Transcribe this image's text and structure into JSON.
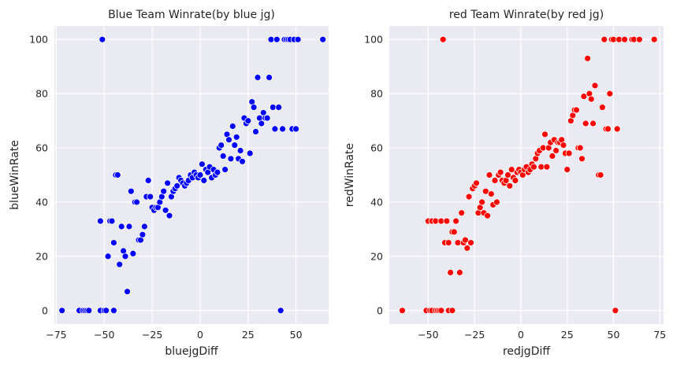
{
  "chart_data": [
    {
      "type": "scatter",
      "title": "Blue Team Winrate(by blue jg)",
      "xlabel": "bluejgDiff",
      "ylabel": "blueWinRate",
      "xticks": [
        -75,
        -50,
        -25,
        0,
        25,
        50
      ],
      "yticks": [
        0,
        20,
        40,
        60,
        80,
        100
      ],
      "xlim": [
        -76,
        67
      ],
      "ylim": [
        -5,
        105
      ],
      "grid": true,
      "point_color": "#0000ff",
      "points": [
        [
          -72,
          0
        ],
        [
          -63,
          0
        ],
        [
          -61,
          0
        ],
        [
          -60,
          0
        ],
        [
          -59,
          0
        ],
        [
          -58,
          0
        ],
        [
          -52,
          0
        ],
        [
          -50,
          0
        ],
        [
          -49,
          0
        ],
        [
          -45,
          0
        ],
        [
          -52,
          33
        ],
        [
          -51,
          100
        ],
        [
          -48,
          20
        ],
        [
          -47,
          33
        ],
        [
          -46,
          33
        ],
        [
          -45,
          25
        ],
        [
          -44,
          50
        ],
        [
          -43,
          50
        ],
        [
          -42,
          17
        ],
        [
          -41,
          31
        ],
        [
          -40,
          22
        ],
        [
          -39,
          20
        ],
        [
          -38,
          7
        ],
        [
          -37,
          31
        ],
        [
          -36,
          44
        ],
        [
          -35,
          21
        ],
        [
          -34,
          40
        ],
        [
          -33,
          40
        ],
        [
          -32,
          26
        ],
        [
          -31,
          26
        ],
        [
          -30,
          28
        ],
        [
          -29,
          31
        ],
        [
          -28,
          42
        ],
        [
          -27,
          48
        ],
        [
          -26,
          42
        ],
        [
          -25,
          38
        ],
        [
          -24,
          37
        ],
        [
          -23,
          38
        ],
        [
          -22,
          38
        ],
        [
          -21,
          40
        ],
        [
          -20,
          42
        ],
        [
          -19,
          44
        ],
        [
          -18,
          37
        ],
        [
          -17,
          47
        ],
        [
          -16,
          35
        ],
        [
          -15,
          42
        ],
        [
          -14,
          44
        ],
        [
          -13,
          45
        ],
        [
          -12,
          46
        ],
        [
          -11,
          49
        ],
        [
          -10,
          48
        ],
        [
          -9,
          47
        ],
        [
          -8,
          46
        ],
        [
          -7,
          47
        ],
        [
          -6,
          48
        ],
        [
          -5,
          50
        ],
        [
          -4,
          49
        ],
        [
          -3,
          51
        ],
        [
          -2,
          50
        ],
        [
          -1,
          49
        ],
        [
          0,
          50
        ],
        [
          1,
          54
        ],
        [
          2,
          48
        ],
        [
          3,
          52
        ],
        [
          4,
          51
        ],
        [
          5,
          53
        ],
        [
          6,
          49
        ],
        [
          7,
          52
        ],
        [
          8,
          50
        ],
        [
          9,
          51
        ],
        [
          10,
          60
        ],
        [
          11,
          61
        ],
        [
          12,
          57
        ],
        [
          13,
          52
        ],
        [
          14,
          65
        ],
        [
          15,
          63
        ],
        [
          16,
          56
        ],
        [
          17,
          68
        ],
        [
          18,
          61
        ],
        [
          19,
          64
        ],
        [
          20,
          56
        ],
        [
          21,
          59
        ],
        [
          22,
          55
        ],
        [
          23,
          71
        ],
        [
          24,
          69
        ],
        [
          25,
          70
        ],
        [
          26,
          58
        ],
        [
          27,
          77
        ],
        [
          28,
          75
        ],
        [
          29,
          66
        ],
        [
          30,
          86
        ],
        [
          31,
          71
        ],
        [
          32,
          69
        ],
        [
          33,
          73
        ],
        [
          34,
          71
        ],
        [
          35,
          71
        ],
        [
          36,
          86
        ],
        [
          37,
          100
        ],
        [
          38,
          75
        ],
        [
          39,
          67
        ],
        [
          40,
          100
        ],
        [
          41,
          75
        ],
        [
          42,
          0
        ],
        [
          43,
          67
        ],
        [
          44,
          100
        ],
        [
          45,
          100
        ],
        [
          46,
          100
        ],
        [
          47,
          100
        ],
        [
          48,
          67
        ],
        [
          49,
          100
        ],
        [
          50,
          67
        ],
        [
          51,
          100
        ],
        [
          64,
          100
        ]
      ]
    },
    {
      "type": "scatter",
      "title": "red Team Winrate(by red jg)",
      "xlabel": "redjgDiff",
      "ylabel": "redWinRate",
      "xticks": [
        -50,
        -25,
        0,
        25,
        50,
        75
      ],
      "yticks": [
        0,
        20,
        40,
        60,
        80,
        100
      ],
      "xlim": [
        -71,
        77
      ],
      "ylim": [
        -5,
        105
      ],
      "grid": true,
      "point_color": "#ff0000",
      "points": [
        [
          -64,
          0
        ],
        [
          -51,
          0
        ],
        [
          -49,
          0
        ],
        [
          -48,
          0
        ],
        [
          -46,
          0
        ],
        [
          -45,
          0
        ],
        [
          -44,
          0
        ],
        [
          -43,
          0
        ],
        [
          -39,
          0
        ],
        [
          -37,
          0
        ],
        [
          -50,
          33
        ],
        [
          -48,
          33
        ],
        [
          -46,
          33
        ],
        [
          -43,
          33
        ],
        [
          -40,
          33
        ],
        [
          -42,
          100
        ],
        [
          -41,
          25
        ],
        [
          -39,
          25
        ],
        [
          -38,
          14
        ],
        [
          -37,
          29
        ],
        [
          -36,
          29
        ],
        [
          -35,
          33
        ],
        [
          -34,
          25
        ],
        [
          -33,
          14
        ],
        [
          -32,
          36
        ],
        [
          -31,
          25
        ],
        [
          -30,
          26
        ],
        [
          -29,
          23
        ],
        [
          -28,
          42
        ],
        [
          -27,
          25
        ],
        [
          -26,
          45
        ],
        [
          -25,
          46
        ],
        [
          -24,
          47
        ],
        [
          -23,
          36
        ],
        [
          -22,
          38
        ],
        [
          -21,
          40
        ],
        [
          -20,
          36
        ],
        [
          -19,
          44
        ],
        [
          -18,
          35
        ],
        [
          -17,
          50
        ],
        [
          -16,
          43
        ],
        [
          -15,
          39
        ],
        [
          -14,
          48
        ],
        [
          -13,
          40
        ],
        [
          -12,
          50
        ],
        [
          -11,
          51
        ],
        [
          -10,
          48
        ],
        [
          -9,
          47
        ],
        [
          -8,
          48
        ],
        [
          -7,
          50
        ],
        [
          -6,
          46
        ],
        [
          -5,
          52
        ],
        [
          -4,
          49
        ],
        [
          -3,
          48
        ],
        [
          -2,
          51
        ],
        [
          -1,
          52
        ],
        [
          0,
          51
        ],
        [
          1,
          50
        ],
        [
          2,
          52
        ],
        [
          3,
          53
        ],
        [
          4,
          51
        ],
        [
          5,
          52
        ],
        [
          6,
          54
        ],
        [
          7,
          53
        ],
        [
          8,
          56
        ],
        [
          9,
          58
        ],
        [
          10,
          59
        ],
        [
          11,
          53
        ],
        [
          12,
          60
        ],
        [
          13,
          65
        ],
        [
          14,
          53
        ],
        [
          15,
          60
        ],
        [
          16,
          62
        ],
        [
          17,
          57
        ],
        [
          18,
          63
        ],
        [
          19,
          59
        ],
        [
          20,
          62
        ],
        [
          21,
          62
        ],
        [
          22,
          63
        ],
        [
          23,
          61
        ],
        [
          24,
          58
        ],
        [
          25,
          52
        ],
        [
          26,
          58
        ],
        [
          27,
          70
        ],
        [
          28,
          72
        ],
        [
          29,
          74
        ],
        [
          30,
          74
        ],
        [
          31,
          60
        ],
        [
          32,
          60
        ],
        [
          33,
          56
        ],
        [
          34,
          79
        ],
        [
          35,
          69
        ],
        [
          36,
          93
        ],
        [
          37,
          80
        ],
        [
          38,
          78
        ],
        [
          39,
          69
        ],
        [
          40,
          83
        ],
        [
          42,
          50
        ],
        [
          43,
          50
        ],
        [
          44,
          75
        ],
        [
          45,
          100
        ],
        [
          46,
          67
        ],
        [
          47,
          67
        ],
        [
          48,
          80
        ],
        [
          49,
          100
        ],
        [
          50,
          100
        ],
        [
          51,
          0
        ],
        [
          52,
          67
        ],
        [
          53,
          100
        ],
        [
          56,
          100
        ],
        [
          60,
          100
        ],
        [
          61,
          100
        ],
        [
          64,
          100
        ],
        [
          72,
          100
        ]
      ]
    }
  ]
}
